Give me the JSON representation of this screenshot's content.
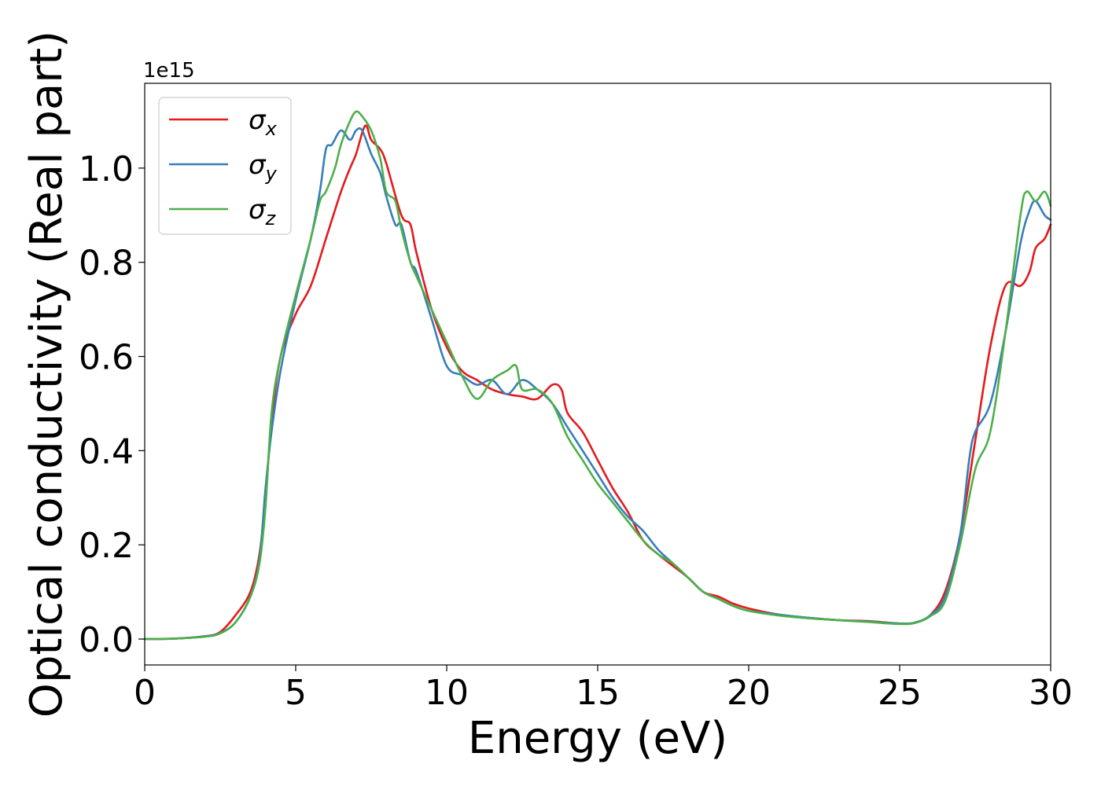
{
  "chart_data": {
    "type": "line",
    "xlabel": "Energy (eV)",
    "ylabel": "Optical conductivity (Real part)",
    "y_offset_label": "1e15",
    "xlim": [
      0,
      30
    ],
    "ylim": [
      -0.055,
      1.18
    ],
    "x_ticks": [
      0,
      5,
      10,
      15,
      20,
      25,
      30
    ],
    "y_ticks": [
      0.0,
      0.2,
      0.4,
      0.6,
      0.8,
      1.0
    ],
    "x_tick_labels": [
      "0",
      "5",
      "10",
      "15",
      "20",
      "25",
      "30"
    ],
    "y_tick_labels": [
      "0.0",
      "0.2",
      "0.4",
      "0.6",
      "0.8",
      "1.0"
    ],
    "legend_position": "top-left",
    "grid": false,
    "series": [
      {
        "name": "σx",
        "symbol": "σ",
        "subscript": "x",
        "color": "#e41a1c",
        "points": [
          [
            0,
            0
          ],
          [
            1,
            0.001
          ],
          [
            2,
            0.006
          ],
          [
            2.5,
            0.015
          ],
          [
            3,
            0.05
          ],
          [
            3.5,
            0.1
          ],
          [
            3.8,
            0.18
          ],
          [
            4,
            0.3
          ],
          [
            4.2,
            0.46
          ],
          [
            4.5,
            0.6
          ],
          [
            5,
            0.69
          ],
          [
            5.5,
            0.75
          ],
          [
            6,
            0.85
          ],
          [
            6.5,
            0.95
          ],
          [
            6.8,
            1.0
          ],
          [
            7,
            1.03
          ],
          [
            7.3,
            1.09
          ],
          [
            7.5,
            1.06
          ],
          [
            7.8,
            1.04
          ],
          [
            8,
            1.01
          ],
          [
            8.5,
            0.9
          ],
          [
            8.8,
            0.88
          ],
          [
            9,
            0.82
          ],
          [
            9.5,
            0.7
          ],
          [
            10,
            0.62
          ],
          [
            10.5,
            0.57
          ],
          [
            11,
            0.55
          ],
          [
            11.5,
            0.53
          ],
          [
            12,
            0.52
          ],
          [
            12.5,
            0.515
          ],
          [
            13,
            0.51
          ],
          [
            13.5,
            0.54
          ],
          [
            13.8,
            0.53
          ],
          [
            14,
            0.48
          ],
          [
            14.5,
            0.44
          ],
          [
            15,
            0.38
          ],
          [
            15.5,
            0.32
          ],
          [
            16,
            0.27
          ],
          [
            16.5,
            0.21
          ],
          [
            17,
            0.18
          ],
          [
            17.5,
            0.155
          ],
          [
            18,
            0.13
          ],
          [
            18.5,
            0.1
          ],
          [
            19,
            0.09
          ],
          [
            19.5,
            0.075
          ],
          [
            20,
            0.065
          ],
          [
            21,
            0.052
          ],
          [
            22,
            0.045
          ],
          [
            23,
            0.04
          ],
          [
            24,
            0.038
          ],
          [
            25,
            0.033
          ],
          [
            25.5,
            0.035
          ],
          [
            26,
            0.05
          ],
          [
            26.5,
            0.1
          ],
          [
            27,
            0.22
          ],
          [
            27.5,
            0.42
          ],
          [
            28,
            0.62
          ],
          [
            28.5,
            0.75
          ],
          [
            29,
            0.75
          ],
          [
            29.3,
            0.78
          ],
          [
            29.5,
            0.83
          ],
          [
            29.8,
            0.85
          ],
          [
            30,
            0.88
          ]
        ]
      },
      {
        "name": "σy",
        "symbol": "σ",
        "subscript": "y",
        "color": "#377eb8",
        "points": [
          [
            0,
            0
          ],
          [
            1,
            0.001
          ],
          [
            2,
            0.006
          ],
          [
            2.5,
            0.013
          ],
          [
            3,
            0.035
          ],
          [
            3.5,
            0.09
          ],
          [
            3.8,
            0.17
          ],
          [
            4,
            0.32
          ],
          [
            4.2,
            0.44
          ],
          [
            4.5,
            0.57
          ],
          [
            5,
            0.72
          ],
          [
            5.5,
            0.85
          ],
          [
            5.8,
            0.95
          ],
          [
            6,
            1.04
          ],
          [
            6.2,
            1.05
          ],
          [
            6.5,
            1.08
          ],
          [
            6.8,
            1.06
          ],
          [
            7,
            1.08
          ],
          [
            7.2,
            1.08
          ],
          [
            7.5,
            1.03
          ],
          [
            7.8,
            0.99
          ],
          [
            8,
            0.94
          ],
          [
            8.3,
            0.88
          ],
          [
            8.5,
            0.88
          ],
          [
            8.8,
            0.8
          ],
          [
            9,
            0.78
          ],
          [
            9.5,
            0.68
          ],
          [
            10,
            0.58
          ],
          [
            10.5,
            0.56
          ],
          [
            11,
            0.54
          ],
          [
            11.5,
            0.55
          ],
          [
            12,
            0.52
          ],
          [
            12.5,
            0.55
          ],
          [
            13,
            0.53
          ],
          [
            13.5,
            0.5
          ],
          [
            14,
            0.45
          ],
          [
            14.5,
            0.4
          ],
          [
            15,
            0.35
          ],
          [
            15.5,
            0.3
          ],
          [
            16,
            0.26
          ],
          [
            16.5,
            0.23
          ],
          [
            17,
            0.19
          ],
          [
            17.5,
            0.16
          ],
          [
            18,
            0.13
          ],
          [
            18.5,
            0.1
          ],
          [
            19,
            0.085
          ],
          [
            19.5,
            0.07
          ],
          [
            20,
            0.06
          ],
          [
            21,
            0.052
          ],
          [
            22,
            0.045
          ],
          [
            23,
            0.04
          ],
          [
            24,
            0.037
          ],
          [
            25,
            0.033
          ],
          [
            25.5,
            0.035
          ],
          [
            26,
            0.05
          ],
          [
            26.5,
            0.09
          ],
          [
            27,
            0.22
          ],
          [
            27.3,
            0.38
          ],
          [
            27.5,
            0.44
          ],
          [
            28,
            0.5
          ],
          [
            28.5,
            0.65
          ],
          [
            29,
            0.84
          ],
          [
            29.3,
            0.91
          ],
          [
            29.5,
            0.93
          ],
          [
            29.8,
            0.9
          ],
          [
            30,
            0.89
          ]
        ]
      },
      {
        "name": "σz",
        "symbol": "σ",
        "subscript": "z",
        "color": "#4daf4a",
        "points": [
          [
            0,
            0
          ],
          [
            1,
            0.001
          ],
          [
            2,
            0.005
          ],
          [
            2.5,
            0.012
          ],
          [
            3,
            0.035
          ],
          [
            3.5,
            0.09
          ],
          [
            3.8,
            0.16
          ],
          [
            4,
            0.28
          ],
          [
            4.2,
            0.48
          ],
          [
            4.5,
            0.6
          ],
          [
            5,
            0.73
          ],
          [
            5.5,
            0.85
          ],
          [
            5.8,
            0.93
          ],
          [
            6,
            0.95
          ],
          [
            6.3,
            1.0
          ],
          [
            6.5,
            1.05
          ],
          [
            6.8,
            1.1
          ],
          [
            7,
            1.12
          ],
          [
            7.2,
            1.11
          ],
          [
            7.5,
            1.08
          ],
          [
            7.8,
            1.02
          ],
          [
            8,
            0.95
          ],
          [
            8.3,
            0.93
          ],
          [
            8.5,
            0.87
          ],
          [
            8.8,
            0.8
          ],
          [
            9,
            0.77
          ],
          [
            9.5,
            0.7
          ],
          [
            10,
            0.63
          ],
          [
            10.5,
            0.56
          ],
          [
            11,
            0.51
          ],
          [
            11.5,
            0.55
          ],
          [
            12,
            0.57
          ],
          [
            12.3,
            0.58
          ],
          [
            12.5,
            0.53
          ],
          [
            13,
            0.53
          ],
          [
            13.5,
            0.5
          ],
          [
            14,
            0.43
          ],
          [
            14.5,
            0.38
          ],
          [
            15,
            0.33
          ],
          [
            15.5,
            0.29
          ],
          [
            16,
            0.25
          ],
          [
            16.5,
            0.21
          ],
          [
            17,
            0.18
          ],
          [
            17.5,
            0.16
          ],
          [
            18,
            0.13
          ],
          [
            18.5,
            0.1
          ],
          [
            19,
            0.085
          ],
          [
            19.5,
            0.07
          ],
          [
            20,
            0.06
          ],
          [
            21,
            0.05
          ],
          [
            22,
            0.044
          ],
          [
            23,
            0.04
          ],
          [
            24,
            0.036
          ],
          [
            25,
            0.032
          ],
          [
            25.5,
            0.034
          ],
          [
            26,
            0.048
          ],
          [
            26.5,
            0.08
          ],
          [
            27,
            0.2
          ],
          [
            27.5,
            0.36
          ],
          [
            28,
            0.44
          ],
          [
            28.5,
            0.65
          ],
          [
            29,
            0.9
          ],
          [
            29.2,
            0.95
          ],
          [
            29.5,
            0.93
          ],
          [
            29.8,
            0.95
          ],
          [
            30,
            0.92
          ]
        ]
      }
    ]
  }
}
